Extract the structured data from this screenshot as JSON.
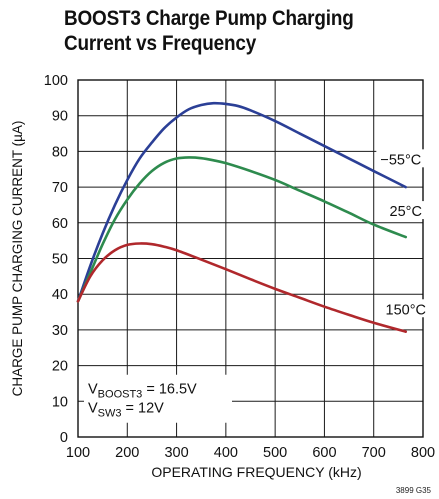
{
  "title_lines": [
    "BOOST3 Charge Pump Charging",
    "Current vs Frequency"
  ],
  "figure_ref": "3899 G35",
  "chart_data": {
    "type": "line",
    "title": "BOOST3 Charge Pump Charging Current vs Frequency",
    "xlabel": "OPERATING FREQUENCY (kHz)",
    "ylabel": "CHARGE PUMP CHARGING CURRENT (µA)",
    "xlim": [
      100,
      800
    ],
    "ylim": [
      0,
      100
    ],
    "x_ticks": [
      100,
      200,
      300,
      400,
      500,
      600,
      700,
      800
    ],
    "y_ticks": [
      0,
      10,
      20,
      30,
      40,
      50,
      60,
      70,
      80,
      90,
      100
    ],
    "grid": true,
    "series": [
      {
        "name": "−55°C",
        "color": "#2b3f96",
        "x": [
          100,
          125,
          150,
          175,
          200,
          225,
          250,
          275,
          300,
          325,
          350,
          375,
          400,
          425,
          450,
          500,
          550,
          600,
          650,
          700,
          765
        ],
        "y": [
          38,
          48,
          57,
          65,
          72,
          78,
          82.5,
          86.5,
          89.5,
          91.8,
          93,
          93.5,
          93.3,
          92.7,
          91.5,
          88.5,
          85,
          81.5,
          78,
          74.5,
          70
        ]
      },
      {
        "name": "25°C",
        "color": "#2e8b4e",
        "x": [
          100,
          125,
          150,
          175,
          200,
          225,
          250,
          275,
          300,
          325,
          350,
          375,
          400,
          450,
          500,
          550,
          600,
          650,
          700,
          765
        ],
        "y": [
          38,
          46,
          54,
          61,
          66.5,
          71,
          74.5,
          76.8,
          78,
          78.3,
          78.1,
          77.5,
          76.7,
          74.5,
          72,
          69,
          66,
          62.8,
          59.5,
          56
        ]
      },
      {
        "name": "150°C",
        "color": "#b0282c",
        "x": [
          100,
          125,
          150,
          175,
          200,
          225,
          250,
          275,
          300,
          350,
          400,
          450,
          500,
          550,
          600,
          650,
          700,
          765
        ],
        "y": [
          38,
          45,
          49.5,
          52.3,
          53.8,
          54.2,
          54,
          53.3,
          52.3,
          49.7,
          47,
          44.2,
          41.5,
          39,
          36.5,
          34.2,
          32,
          29.5
        ]
      }
    ],
    "annotations": [
      {
        "type": "series_label",
        "text": "−55°C",
        "x": 755,
        "y": 77.5
      },
      {
        "type": "series_label",
        "text": "25°C",
        "x": 765,
        "y": 63
      },
      {
        "type": "series_label",
        "text": "150°C",
        "x": 765,
        "y": 35.5
      },
      {
        "type": "condition",
        "parts": [
          [
            "V",
            "BOOST3",
            " = 16.5V"
          ],
          [
            "V",
            "SW3",
            " = 12V"
          ]
        ]
      }
    ]
  }
}
